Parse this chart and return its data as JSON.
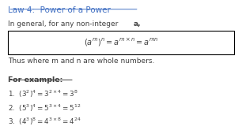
{
  "title": "Law 4:  Power of a Power",
  "general_text": "In general, for any non-integer ",
  "general_bold": "a,",
  "thus_text": "Thus where m and n are whole numbers.",
  "example_header": "For example:",
  "title_color": "#4472C4",
  "text_color": "#404040",
  "box_color": "#000000",
  "bg_color": "#FFFFFF",
  "font_size_title": 7.5,
  "font_size_body": 6.5,
  "font_size_formula": 7.0,
  "font_size_example_header": 6.8,
  "font_size_examples": 6.3
}
